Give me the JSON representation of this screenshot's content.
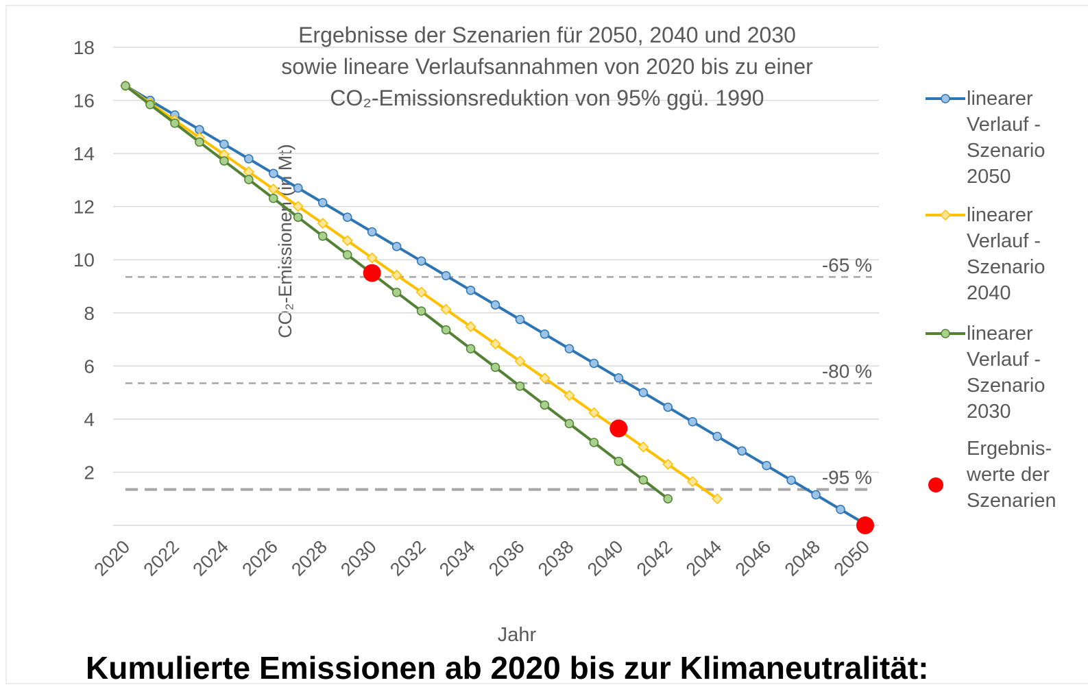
{
  "chart_data": {
    "type": "line",
    "title_lines": [
      "Ergebnisse der Szenarien  für 2050, 2040 und 2030",
      "sowie lineare  Verlaufsannahmen  von 2020 bis zu einer",
      "CO₂-Emissionsreduktion von 95% ggü. 1990"
    ],
    "xlabel": "Jahr",
    "ylabel": "CO₂-Emissionen (in Mt)",
    "x": [
      2020,
      2021,
      2022,
      2023,
      2024,
      2025,
      2026,
      2027,
      2028,
      2029,
      2030,
      2031,
      2032,
      2033,
      2034,
      2035,
      2036,
      2037,
      2038,
      2039,
      2040,
      2041,
      2042,
      2043,
      2044,
      2045,
      2046,
      2047,
      2048,
      2049,
      2050
    ],
    "series": [
      {
        "name": "linearer Verlauf - Szenario 2050",
        "color": "#2e75b6",
        "marker": "circle",
        "marker_color": "#9dc3e6",
        "values": [
          16.55,
          16.0,
          15.45,
          14.9,
          14.35,
          13.8,
          13.25,
          12.7,
          12.15,
          11.6,
          11.05,
          10.5,
          9.95,
          9.4,
          8.85,
          8.3,
          7.75,
          7.2,
          6.65,
          6.1,
          5.55,
          5.0,
          4.45,
          3.9,
          3.35,
          2.8,
          2.25,
          1.7,
          1.15,
          0.6,
          0.05
        ]
      },
      {
        "name": "linearer Verlauf - Szenario 2040",
        "color": "#ffc000",
        "marker": "diamond",
        "marker_color": "#ffe699",
        "values": [
          16.55,
          15.9,
          15.25,
          14.6,
          13.96,
          13.31,
          12.66,
          12.01,
          11.37,
          10.72,
          10.07,
          9.42,
          8.78,
          8.13,
          7.48,
          6.83,
          6.18,
          5.54,
          4.89,
          4.24,
          3.6,
          2.95,
          2.3,
          1.65,
          1.0,
          null,
          null,
          null,
          null,
          null,
          null
        ]
      },
      {
        "name": "linearer Verlauf - Szenario 2030",
        "color": "#548235",
        "marker": "circle",
        "marker_color": "#a9d18e",
        "values": [
          16.55,
          15.84,
          15.14,
          14.43,
          13.72,
          13.02,
          12.31,
          11.6,
          10.89,
          10.19,
          9.48,
          8.77,
          8.07,
          7.36,
          6.65,
          5.95,
          5.24,
          4.53,
          3.83,
          3.12,
          2.41,
          1.71,
          1.0,
          null,
          null,
          null,
          null,
          null,
          null,
          null,
          null
        ]
      }
    ],
    "points": {
      "name": "Ergebnis-werte der Szenarien",
      "color": "#ff0000",
      "x": [
        2030,
        2040,
        2050
      ],
      "values": [
        9.5,
        3.65,
        0.0
      ]
    },
    "reference_lines": [
      {
        "value": 9.35,
        "label": "-65 %"
      },
      {
        "value": 5.35,
        "label": "-80 %"
      },
      {
        "value": 1.35,
        "label": "-95 %"
      }
    ],
    "xlim": [
      2020,
      2050
    ],
    "xticks": [
      2020,
      2022,
      2024,
      2026,
      2028,
      2030,
      2032,
      2034,
      2036,
      2038,
      2040,
      2042,
      2044,
      2046,
      2048,
      2050
    ],
    "ylim": [
      0,
      18
    ],
    "yticks": [
      2,
      4,
      6,
      8,
      10,
      12,
      14,
      16,
      18
    ],
    "grid": true,
    "legend": "right",
    "footer": "Kumulierte Emissionen ab 2020 bis zur Klimaneutralität:"
  }
}
